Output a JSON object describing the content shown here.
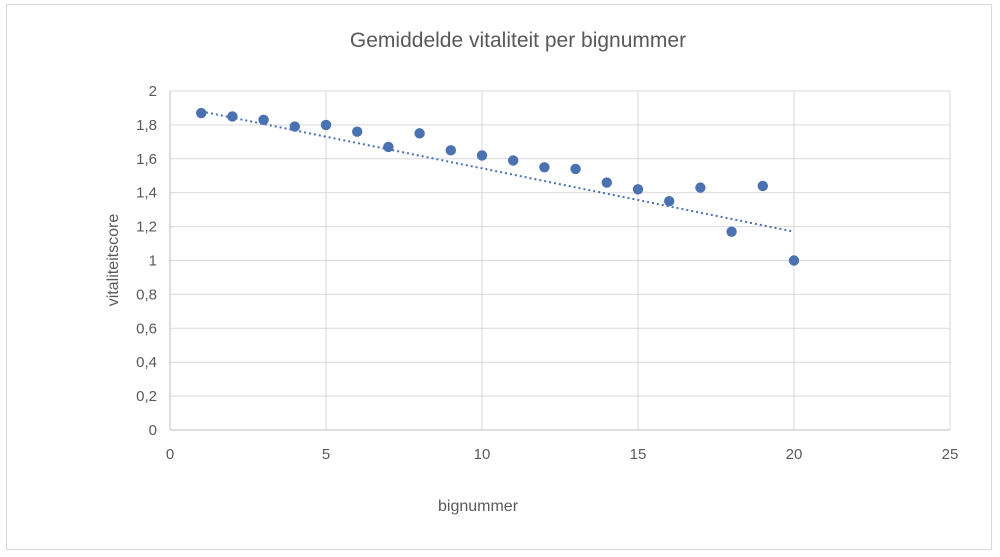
{
  "chart_data": {
    "type": "scatter",
    "title": "Gemiddelde vitaliteit per bignummer",
    "xlabel": "bignummer",
    "ylabel": "vitaliteitscore",
    "xlim": [
      0,
      25
    ],
    "ylim": [
      0,
      2
    ],
    "x_ticks": [
      "0",
      "5",
      "10",
      "15",
      "20",
      "25"
    ],
    "y_ticks": [
      "0",
      "0,2",
      "0,4",
      "0,6",
      "0,8",
      "1",
      "1,2",
      "1,4",
      "1,6",
      "1,8",
      "2"
    ],
    "grid": true,
    "trendline": {
      "style": "dotted",
      "from": [
        1,
        1.88
      ],
      "to": [
        20,
        1.17
      ]
    },
    "series": [
      {
        "x": [
          1,
          2,
          3,
          4,
          5,
          6,
          7,
          8,
          9,
          10,
          11,
          12,
          13,
          14,
          15,
          16,
          17,
          18,
          19,
          20
        ],
        "y": [
          1.87,
          1.85,
          1.83,
          1.79,
          1.8,
          1.76,
          1.67,
          1.75,
          1.65,
          1.62,
          1.59,
          1.55,
          1.54,
          1.46,
          1.42,
          1.35,
          1.43,
          1.17,
          1.44,
          1.0
        ],
        "color": "#4a72b0"
      }
    ]
  }
}
